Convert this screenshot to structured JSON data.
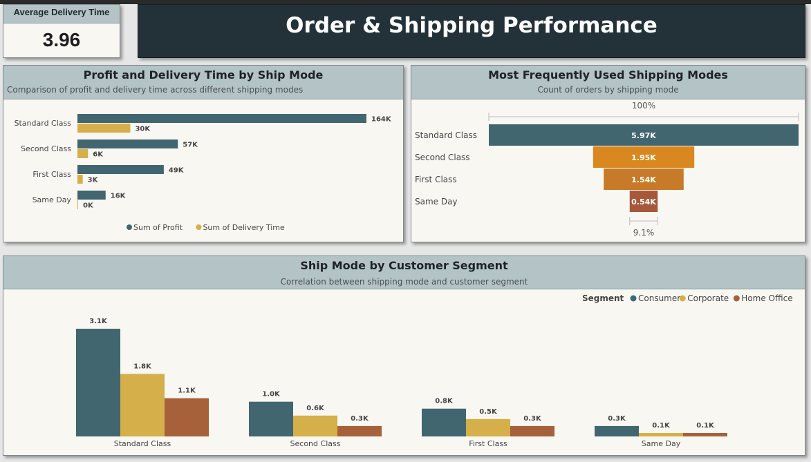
{
  "kpi": {
    "label": "Average Delivery Time",
    "value": "3.96"
  },
  "dashboard": {
    "title": "Order & Shipping Performance"
  },
  "colors": {
    "consumer": "#426670",
    "corporate": "#d4af4a",
    "home_office": "#a6603a",
    "profit": "#426670",
    "delivery": "#d4af4a",
    "funnel": [
      "#426670",
      "#d8881e",
      "#c77a27",
      "#a6593a"
    ]
  },
  "profit_panel": {
    "title": "Profit and Delivery Time by Ship Mode",
    "subtitle": "Comparison of profit and delivery time across different shipping modes"
  },
  "freq_panel": {
    "title": "Most Frequently Used Shipping Modes",
    "subtitle": "Count of orders by shipping mode"
  },
  "segment_panel": {
    "title": "Ship Mode by Customer Segment",
    "subtitle": "Correlation between shipping mode and customer segment"
  },
  "chart_data": [
    {
      "type": "bar",
      "orientation": "horizontal",
      "title": "Profit and Delivery Time by Ship Mode",
      "subtitle": "Comparison of profit and delivery time across different shipping modes",
      "categories": [
        "Standard Class",
        "Second Class",
        "First Class",
        "Same Day"
      ],
      "series": [
        {
          "name": "Sum of Profit",
          "values": [
            164000,
            57000,
            49000,
            16000
          ],
          "labels": [
            "164K",
            "57K",
            "49K",
            "16K"
          ]
        },
        {
          "name": "Sum of Delivery Time",
          "values": [
            30000,
            6000,
            3000,
            0
          ],
          "labels": [
            "30K",
            "6K",
            "3K",
            "0K"
          ]
        }
      ],
      "legend": "bottom-center",
      "grid": false
    },
    {
      "type": "funnel",
      "title": "Most Frequently Used Shipping Modes",
      "subtitle": "Count of orders by shipping mode",
      "categories": [
        "Standard Class",
        "Second Class",
        "First Class",
        "Same Day"
      ],
      "values": [
        5970,
        1950,
        1540,
        540
      ],
      "labels": [
        "5.97K",
        "1.95K",
        "1.54K",
        "0.54K"
      ],
      "top_percent": "100%",
      "bottom_percent": "9.1%"
    },
    {
      "type": "bar",
      "orientation": "vertical",
      "title": "Ship Mode by Customer Segment",
      "subtitle": "Correlation between shipping mode and customer segment",
      "categories": [
        "Standard Class",
        "Second Class",
        "First Class",
        "Same Day"
      ],
      "legend_title": "Segment",
      "series": [
        {
          "name": "Consumer",
          "values": [
            3100,
            1000,
            800,
            300
          ],
          "labels": [
            "3.1K",
            "1.0K",
            "0.8K",
            "0.3K"
          ]
        },
        {
          "name": "Corporate",
          "values": [
            1800,
            600,
            500,
            100
          ],
          "labels": [
            "1.8K",
            "0.6K",
            "0.5K",
            "0.1K"
          ]
        },
        {
          "name": "Home Office",
          "values": [
            1100,
            300,
            300,
            100
          ],
          "labels": [
            "1.1K",
            "0.3K",
            "0.3K",
            "0.1K"
          ]
        }
      ],
      "legend": "top-right",
      "grid": false
    }
  ]
}
